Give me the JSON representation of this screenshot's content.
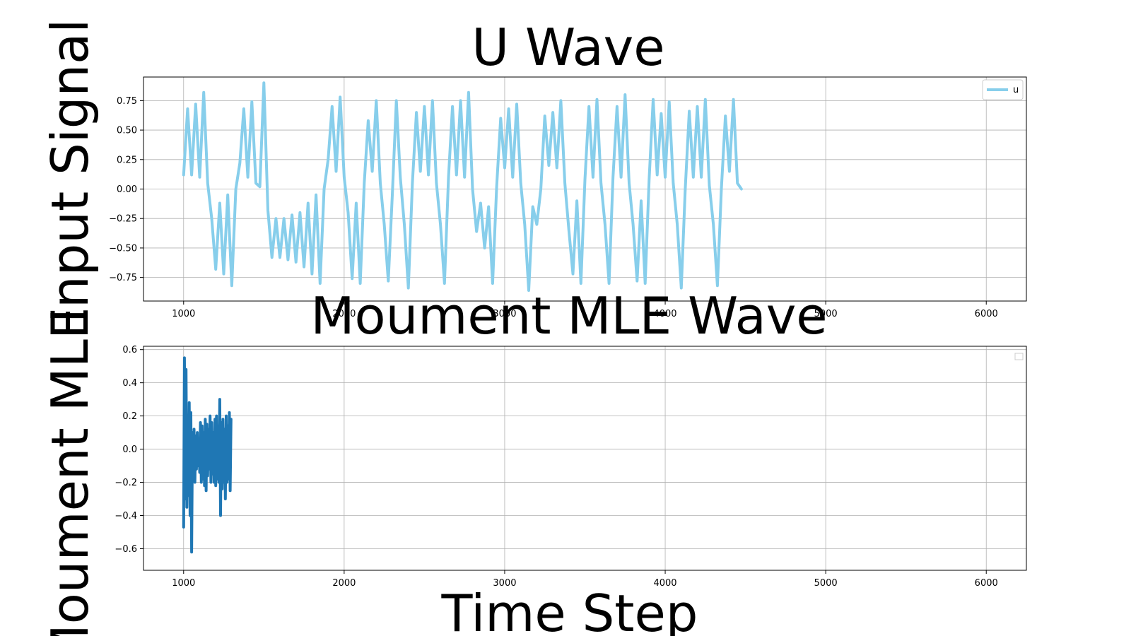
{
  "figure": {
    "ylabel": "Input Signal",
    "xlabel": "Time Step",
    "ylabel_secondary": "Moument MLE"
  },
  "chart_data": [
    {
      "type": "line",
      "title": "U Wave",
      "xlabel": "",
      "ylabel": "Input Signal",
      "xlim": [
        750,
        6250
      ],
      "ylim": [
        -0.95,
        0.95
      ],
      "xticks": [
        1000,
        2000,
        3000,
        4000,
        5000,
        6000
      ],
      "yticks": [
        -0.75,
        -0.5,
        -0.25,
        0.0,
        0.25,
        0.5,
        0.75
      ],
      "ytick_labels": [
        "−0.75",
        "−0.50",
        "−0.25",
        "0.00",
        "0.25",
        "0.50",
        "0.75"
      ],
      "grid": true,
      "legend": "top-right",
      "series": [
        {
          "name": "u",
          "color": "#87CEEB",
          "x_start": 1000,
          "x_step": 25,
          "values": [
            0.12,
            0.68,
            0.12,
            0.72,
            0.1,
            0.82,
            0.05,
            -0.25,
            -0.68,
            -0.12,
            -0.72,
            -0.05,
            -0.82,
            0.0,
            0.22,
            0.68,
            0.1,
            0.74,
            0.05,
            0.02,
            0.9,
            -0.18,
            -0.58,
            -0.25,
            -0.58,
            -0.25,
            -0.6,
            -0.22,
            -0.62,
            -0.2,
            -0.66,
            -0.12,
            -0.72,
            -0.05,
            -0.8,
            0.0,
            0.25,
            0.7,
            0.15,
            0.78,
            0.1,
            -0.2,
            -0.76,
            -0.12,
            -0.8,
            0.05,
            0.58,
            0.15,
            0.75,
            0.05,
            -0.3,
            -0.78,
            -0.05,
            0.75,
            0.1,
            -0.3,
            -0.84,
            0.05,
            0.65,
            0.15,
            0.7,
            0.12,
            0.75,
            0.05,
            -0.3,
            -0.8,
            0.1,
            0.7,
            0.12,
            0.75,
            0.1,
            0.82,
            0.0,
            -0.36,
            -0.12,
            -0.5,
            -0.15,
            -0.8,
            0.02,
            0.6,
            0.18,
            0.68,
            0.1,
            0.72,
            0.05,
            -0.3,
            -0.86,
            -0.15,
            -0.3,
            0.0,
            0.62,
            0.2,
            0.65,
            0.18,
            0.75,
            0.05,
            -0.35,
            -0.72,
            -0.1,
            -0.8,
            0.08,
            0.7,
            0.1,
            0.76,
            0.05,
            -0.3,
            -0.8,
            0.1,
            0.7,
            0.1,
            0.8,
            0.05,
            -0.3,
            -0.78,
            -0.1,
            -0.8,
            0.08,
            0.76,
            0.12,
            0.64,
            0.1,
            0.74,
            0.05,
            -0.3,
            -0.84,
            0.0,
            0.66,
            0.1,
            0.7,
            0.1,
            0.76,
            0.03,
            -0.3,
            -0.82,
            0.0,
            0.62,
            0.15,
            0.76,
            0.05,
            0.0
          ]
        }
      ]
    },
    {
      "type": "line",
      "title": "Moument MLE Wave",
      "xlabel": "Time Step",
      "ylabel": "Moument MLE",
      "xlim": [
        750,
        6250
      ],
      "ylim": [
        -0.73,
        0.62
      ],
      "xticks": [
        1000,
        2000,
        3000,
        4000,
        5000,
        6000
      ],
      "yticks": [
        -0.6,
        -0.4,
        -0.2,
        0.0,
        0.2,
        0.4,
        0.6
      ],
      "ytick_labels": [
        "−0.6",
        "−0.4",
        "−0.2",
        "0.0",
        "0.2",
        "0.4",
        "0.6"
      ],
      "grid": true,
      "legend": "top-right",
      "series": [
        {
          "color": "#1f77b4",
          "x_start": 1000,
          "x_step": 5,
          "values": [
            -0.47,
            0.55,
            -0.3,
            0.48,
            -0.35,
            0.2,
            -0.28,
            0.28,
            -0.4,
            0.22,
            -0.62,
            0.1,
            -0.15,
            0.12,
            -0.2,
            0.08,
            -0.12,
            0.1,
            -0.1,
            0.06,
            -0.14,
            0.16,
            -0.2,
            0.14,
            -0.18,
            0.1,
            -0.22,
            0.18,
            -0.25,
            0.15,
            -0.16,
            0.12,
            -0.12,
            0.2,
            -0.2,
            0.16,
            -0.15,
            0.1,
            -0.2,
            0.18,
            -0.22,
            0.2,
            -0.18,
            0.14,
            -0.2,
            0.3,
            -0.4,
            0.16,
            -0.24,
            0.18,
            -0.2,
            0.12,
            -0.3,
            0.2,
            -0.2,
            0.14,
            -0.18,
            0.22,
            -0.25,
            0.18
          ]
        }
      ]
    }
  ]
}
